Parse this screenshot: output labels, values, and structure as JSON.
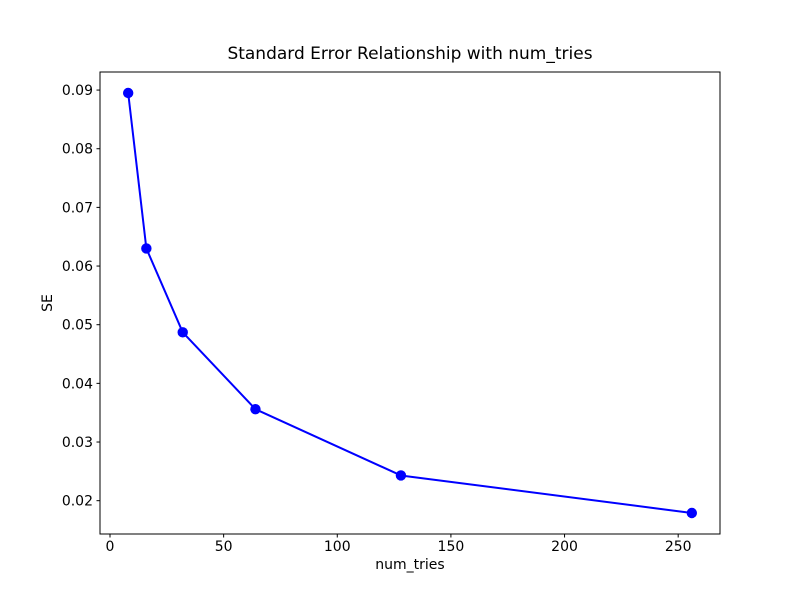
{
  "figure": {
    "title": "Standard Error Relationship with num_tries",
    "xlabel": "num_tries",
    "ylabel": "SE"
  },
  "chart_data": {
    "type": "line",
    "title": "Standard Error Relationship with num_tries",
    "xlabel": "num_tries",
    "ylabel": "SE",
    "x": [
      8,
      16,
      32,
      64,
      128,
      256
    ],
    "y": [
      0.0895,
      0.063,
      0.0487,
      0.0356,
      0.0243,
      0.0179
    ],
    "series": [
      {
        "name": "SE",
        "x": [
          8,
          16,
          32,
          64,
          128,
          256
        ],
        "values": [
          0.0895,
          0.063,
          0.0487,
          0.0356,
          0.0243,
          0.0179
        ]
      }
    ],
    "xticks": [
      0,
      50,
      100,
      150,
      200,
      250
    ],
    "yticks": [
      0.02,
      0.03,
      0.04,
      0.05,
      0.06,
      0.07,
      0.08,
      0.09
    ],
    "xlim": [
      -4.4,
      268.4
    ],
    "ylim": [
      0.01432,
      0.09308
    ],
    "grid": false,
    "legend": "none",
    "line_color": "#0000ff",
    "marker": "o",
    "marker_color": "#0000ff",
    "spine_color": "#000000",
    "text_color": "#000000",
    "background": "#ffffff"
  }
}
